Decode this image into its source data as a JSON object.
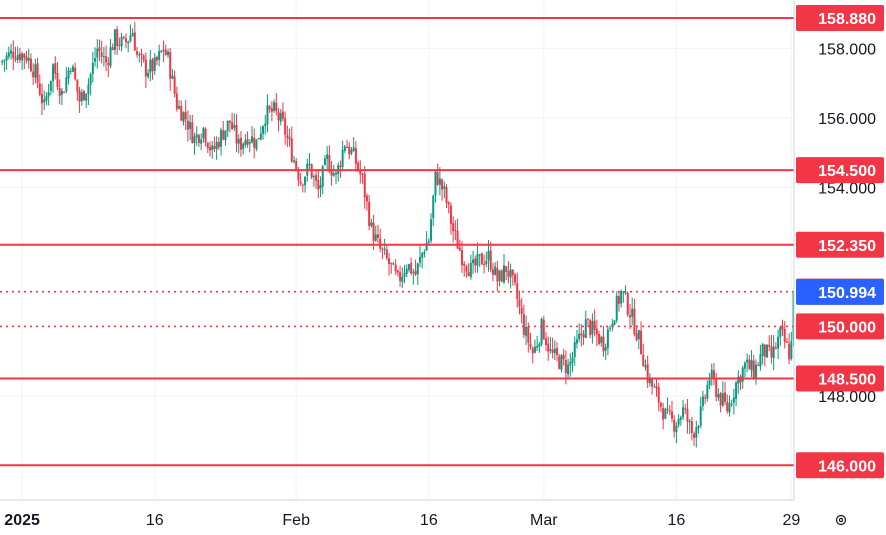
{
  "colors": {
    "up": "#089981",
    "down": "#F23645",
    "level_line": "#F23645",
    "level_tag": "#F23645",
    "last_price_tag": "#2962FF",
    "grid": "#F0F3FA",
    "axis_text": "#131722"
  },
  "icons": {
    "settings": "gear-icon"
  },
  "chart_data": {
    "type": "candlestick",
    "symbol": "",
    "ylim": [
      145,
      159.4
    ],
    "price_ticks": [
      158.0,
      156.0,
      154.0,
      148.0
    ],
    "price_tick_labels": [
      "158.000",
      "156.000",
      "154.000",
      "148.000"
    ],
    "time_ticks": [
      {
        "label": "2025",
        "day": 0,
        "bold": true
      },
      {
        "label": "16",
        "day": 15,
        "bold": false
      },
      {
        "label": "Feb",
        "day": 31,
        "bold": false
      },
      {
        "label": "16",
        "day": 46,
        "bold": false
      },
      {
        "label": "Mar",
        "day": 59,
        "bold": false
      },
      {
        "label": "16",
        "day": 74,
        "bold": false
      },
      {
        "label": "29",
        "day": 87,
        "bold": false
      }
    ],
    "x_domain_days": [
      -2.5,
      87.3
    ],
    "levels": [
      {
        "price": 158.88,
        "label": "158.880",
        "style": "solid"
      },
      {
        "price": 154.5,
        "label": "154.500",
        "style": "solid"
      },
      {
        "price": 152.35,
        "label": "152.350",
        "style": "solid"
      },
      {
        "price": 151.0,
        "label": "151.000",
        "style": "dotted"
      },
      {
        "price": 150.0,
        "label": "150.000",
        "style": "dotted"
      },
      {
        "price": 148.5,
        "label": "148.500",
        "style": "solid"
      },
      {
        "price": 146.0,
        "label": "146.000",
        "style": "solid"
      }
    ],
    "last_price": {
      "price": 150.994,
      "label": "150.994"
    },
    "series_close_path": [
      [
        -2.5,
        157.6
      ],
      [
        -1,
        157.9
      ],
      [
        0.5,
        157.8
      ],
      [
        1.5,
        157.3
      ],
      [
        2.5,
        156.3
      ],
      [
        3.5,
        157.5
      ],
      [
        4.5,
        156.7
      ],
      [
        5.5,
        157.6
      ],
      [
        6.5,
        156.5
      ],
      [
        7.5,
        157.0
      ],
      [
        8.5,
        158.0
      ],
      [
        9.5,
        157.6
      ],
      [
        10.5,
        158.3
      ],
      [
        11.5,
        158.1
      ],
      [
        12.5,
        158.5
      ],
      [
        13,
        157.8
      ],
      [
        14,
        157.4
      ],
      [
        15,
        157.5
      ],
      [
        16,
        158.0
      ],
      [
        16.5,
        157.7
      ],
      [
        17.5,
        156.4
      ],
      [
        18.5,
        156.0
      ],
      [
        19.5,
        155.4
      ],
      [
        20.5,
        155.7
      ],
      [
        21.5,
        155.0
      ],
      [
        22.5,
        155.5
      ],
      [
        23.5,
        155.9
      ],
      [
        24.5,
        155.2
      ],
      [
        25.5,
        155.5
      ],
      [
        26.5,
        155.3
      ],
      [
        27.5,
        156.1
      ],
      [
        28.5,
        156.2
      ],
      [
        29.5,
        155.8
      ],
      [
        30.5,
        155.0
      ],
      [
        31.5,
        154.2
      ],
      [
        32.5,
        154.6
      ],
      [
        33.5,
        153.9
      ],
      [
        34.5,
        154.8
      ],
      [
        35.5,
        154.3
      ],
      [
        36.5,
        155.3
      ],
      [
        37.5,
        154.9
      ],
      [
        38.5,
        154.2
      ],
      [
        39.5,
        152.8
      ],
      [
        40.5,
        152.2
      ],
      [
        41.5,
        151.8
      ],
      [
        42.5,
        151.3
      ],
      [
        43.5,
        151.8
      ],
      [
        44.5,
        151.5
      ],
      [
        45.5,
        152.3
      ],
      [
        46,
        152.5
      ],
      [
        46.8,
        154.4
      ],
      [
        47.8,
        153.8
      ],
      [
        48.8,
        152.7
      ],
      [
        49.8,
        152.0
      ],
      [
        50.8,
        151.6
      ],
      [
        51.8,
        151.9
      ],
      [
        52.8,
        152.0
      ],
      [
        53.8,
        151.3
      ],
      [
        54.8,
        151.7
      ],
      [
        55.8,
        151.0
      ],
      [
        56.8,
        149.9
      ],
      [
        57.8,
        149.2
      ],
      [
        58.8,
        150.0
      ],
      [
        59.8,
        149.2
      ],
      [
        60.8,
        149.0
      ],
      [
        61.8,
        148.8
      ],
      [
        62.8,
        149.5
      ],
      [
        63.8,
        150.1
      ],
      [
        64.8,
        149.8
      ],
      [
        65.8,
        149.5
      ],
      [
        66.8,
        150.3
      ],
      [
        67.8,
        151.0
      ],
      [
        68.8,
        150.4
      ],
      [
        69.8,
        149.6
      ],
      [
        70.8,
        148.5
      ],
      [
        71.8,
        148.0
      ],
      [
        72.8,
        147.4
      ],
      [
        73.8,
        147.2
      ],
      [
        74.8,
        147.6
      ],
      [
        75.8,
        146.9
      ],
      [
        76.8,
        147.5
      ],
      [
        77.8,
        148.6
      ],
      [
        78.8,
        148.0
      ],
      [
        79.8,
        147.6
      ],
      [
        80.8,
        148.4
      ],
      [
        81.8,
        148.9
      ],
      [
        82.8,
        148.7
      ],
      [
        83.8,
        149.3
      ],
      [
        84.8,
        149.1
      ],
      [
        85.8,
        149.8
      ],
      [
        86.8,
        149.2
      ],
      [
        87.3,
        149.9
      ]
    ]
  }
}
